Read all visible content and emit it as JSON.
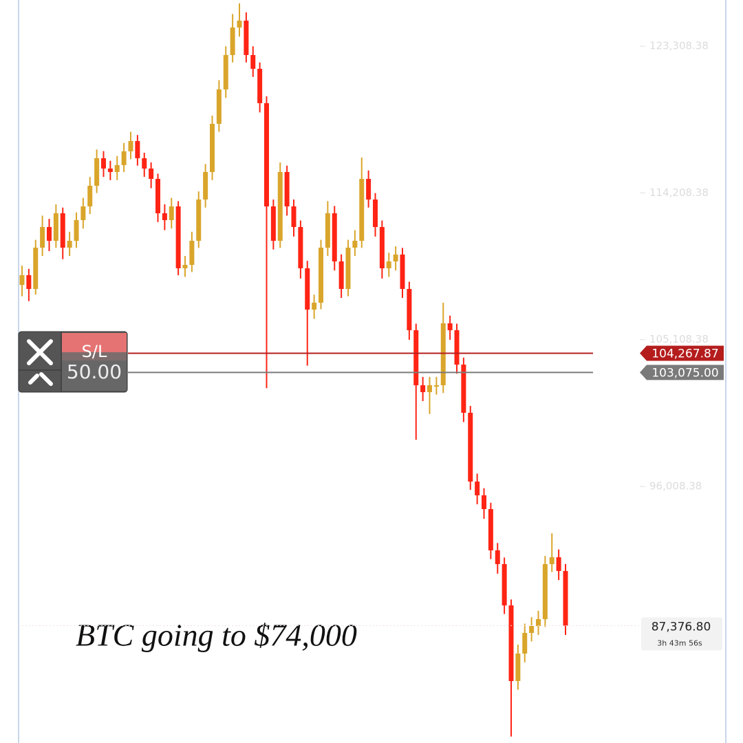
{
  "chart_data": {
    "type": "candlestick",
    "up_color": "#d9a52b",
    "down_color": "#ff2414",
    "ylim": [
      80100,
      126170
    ],
    "yticks": [
      {
        "value": 123308.38,
        "label": "123,308.38"
      },
      {
        "value": 114208.38,
        "label": "114,208.38"
      },
      {
        "value": 105108.38,
        "label": "105,108.38"
      },
      {
        "value": 96008.38,
        "label": "96,008.38"
      }
    ],
    "open": [
      108500,
      109108,
      108254,
      110814,
      112094,
      111240,
      112947,
      110814,
      111240,
      112520,
      113373,
      114653,
      116359,
      115719,
      115506,
      115933,
      116786,
      117426,
      116359,
      115719,
      115079,
      112947,
      112520,
      113373,
      109534,
      109747,
      111240,
      113800,
      115506,
      118492,
      120625,
      122758,
      124464,
      124890,
      122758,
      121904,
      119772,
      113373,
      111240,
      115506,
      113373,
      112094,
      109534,
      106975,
      107401,
      110814,
      112947,
      109961,
      108254,
      110814,
      111240,
      115079,
      113800,
      112094,
      109534,
      109961,
      110387,
      108254,
      105695,
      102283,
      101856,
      102283,
      102283,
      106122,
      105695,
      103562,
      100576,
      96311,
      95458,
      94605,
      92045,
      91192,
      88633,
      83941,
      85647,
      86926,
      87353,
      87780,
      91192,
      91619,
      90766
    ],
    "high": [
      109700,
      109500,
      111300,
      112800,
      112600,
      113500,
      113300,
      111800,
      113000,
      113900,
      115200,
      116900,
      116800,
      116200,
      116500,
      117300,
      118000,
      117800,
      116700,
      116100,
      115400,
      113500,
      113900,
      113700,
      110300,
      111800,
      114300,
      116000,
      119000,
      121200,
      123300,
      125300,
      125960,
      125400,
      123300,
      122300,
      120200,
      113800,
      116100,
      115900,
      113800,
      112500,
      110000,
      107900,
      111300,
      113700,
      113400,
      110400,
      111300,
      111900,
      116400,
      115600,
      114200,
      112500,
      110500,
      110900,
      110800,
      108700,
      106100,
      102800,
      102800,
      102800,
      107400,
      106600,
      106100,
      104000,
      101000,
      96800,
      95900,
      95000,
      92500,
      91600,
      89000,
      86200,
      87500,
      87900,
      88300,
      91700,
      93100,
      92100,
      91200
    ],
    "low": [
      107800,
      107500,
      107900,
      110300,
      110600,
      110800,
      110100,
      110300,
      110800,
      112000,
      112900,
      114200,
      115200,
      115000,
      115000,
      115500,
      116300,
      115900,
      115200,
      114500,
      112400,
      111900,
      112000,
      109100,
      109000,
      109300,
      110800,
      113300,
      115000,
      118000,
      120100,
      122300,
      123900,
      122300,
      121400,
      119200,
      102100,
      110700,
      110800,
      112800,
      111500,
      108900,
      103500,
      106400,
      107000,
      110300,
      109400,
      107700,
      107800,
      110300,
      110800,
      113300,
      111500,
      108900,
      109000,
      109400,
      107700,
      105100,
      98900,
      101300,
      100500,
      101700,
      101800,
      105100,
      103000,
      100000,
      95800,
      94900,
      94000,
      91500,
      90600,
      88100,
      80500,
      83400,
      85100,
      86400,
      86800,
      87300,
      90700,
      90200,
      86800
    ],
    "close": [
      109108,
      108254,
      110814,
      112094,
      111240,
      112947,
      110814,
      111240,
      112520,
      113373,
      114653,
      116359,
      115719,
      115506,
      115933,
      116786,
      117426,
      116359,
      115719,
      115079,
      112947,
      112520,
      113373,
      109534,
      109747,
      111240,
      113800,
      115506,
      118492,
      120625,
      122758,
      124464,
      124890,
      122758,
      121904,
      119772,
      113373,
      111240,
      115506,
      113373,
      112094,
      109534,
      106975,
      107401,
      110814,
      112947,
      109961,
      108254,
      110814,
      111240,
      115079,
      113800,
      112094,
      109534,
      109961,
      110387,
      108254,
      105695,
      102283,
      101856,
      102283,
      102283,
      106122,
      105695,
      103562,
      100576,
      96311,
      95458,
      94605,
      92045,
      91192,
      88633,
      83941,
      85647,
      86926,
      87353,
      87780,
      91192,
      91619,
      90766,
      87376.8
    ],
    "order_lines": [
      {
        "value": 104267.87,
        "label": "104,267.87",
        "color": "#b51d1d"
      },
      {
        "value": 103075,
        "label": "103,075.00",
        "color": "#7a7a7a"
      }
    ],
    "price_label": {
      "value": 87376.8,
      "label": "87,376.80"
    },
    "countdown": "3h 43m 56s",
    "widget": {
      "top": "S/L",
      "bottom": "50.00"
    },
    "annotation": "BTC going to $74,000"
  }
}
